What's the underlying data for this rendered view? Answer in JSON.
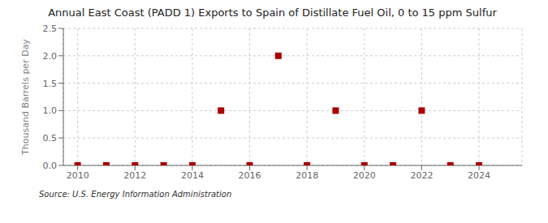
{
  "chart_data": {
    "type": "scatter",
    "title": "Annual East Coast (PADD 1) Exports to Spain of Distillate Fuel Oil, 0 to 15 ppm Sulfur",
    "y_label": "Thousand Barrels per Day",
    "annotations": [
      "Source: U.S. Energy Information Administration"
    ],
    "x": [
      2010,
      2011,
      2012,
      2013,
      2014,
      2015,
      2016,
      2017,
      2018,
      2019,
      2020,
      2021,
      2022,
      2023,
      2024
    ],
    "values": [
      0.0,
      0.0,
      0.0,
      0.0,
      0.0,
      1.0,
      0.0,
      2.0,
      0.0,
      1.0,
      0.0,
      0.0,
      1.0,
      0.0,
      0.0
    ],
    "color": "#aa0000",
    "marker": "square",
    "xlim": [
      2009.5,
      2025.5
    ],
    "ylim": [
      0,
      2.5
    ],
    "xticks": [
      2010,
      2012,
      2014,
      2016,
      2018,
      2020,
      2022,
      2024
    ],
    "yticks": [
      {
        "value": 0,
        "label": "0.0"
      },
      0.5,
      {
        "value": 1,
        "label": "1.0"
      },
      1.5,
      {
        "value": 2,
        "label": "2.0"
      },
      2.5
    ],
    "grid": true
  }
}
